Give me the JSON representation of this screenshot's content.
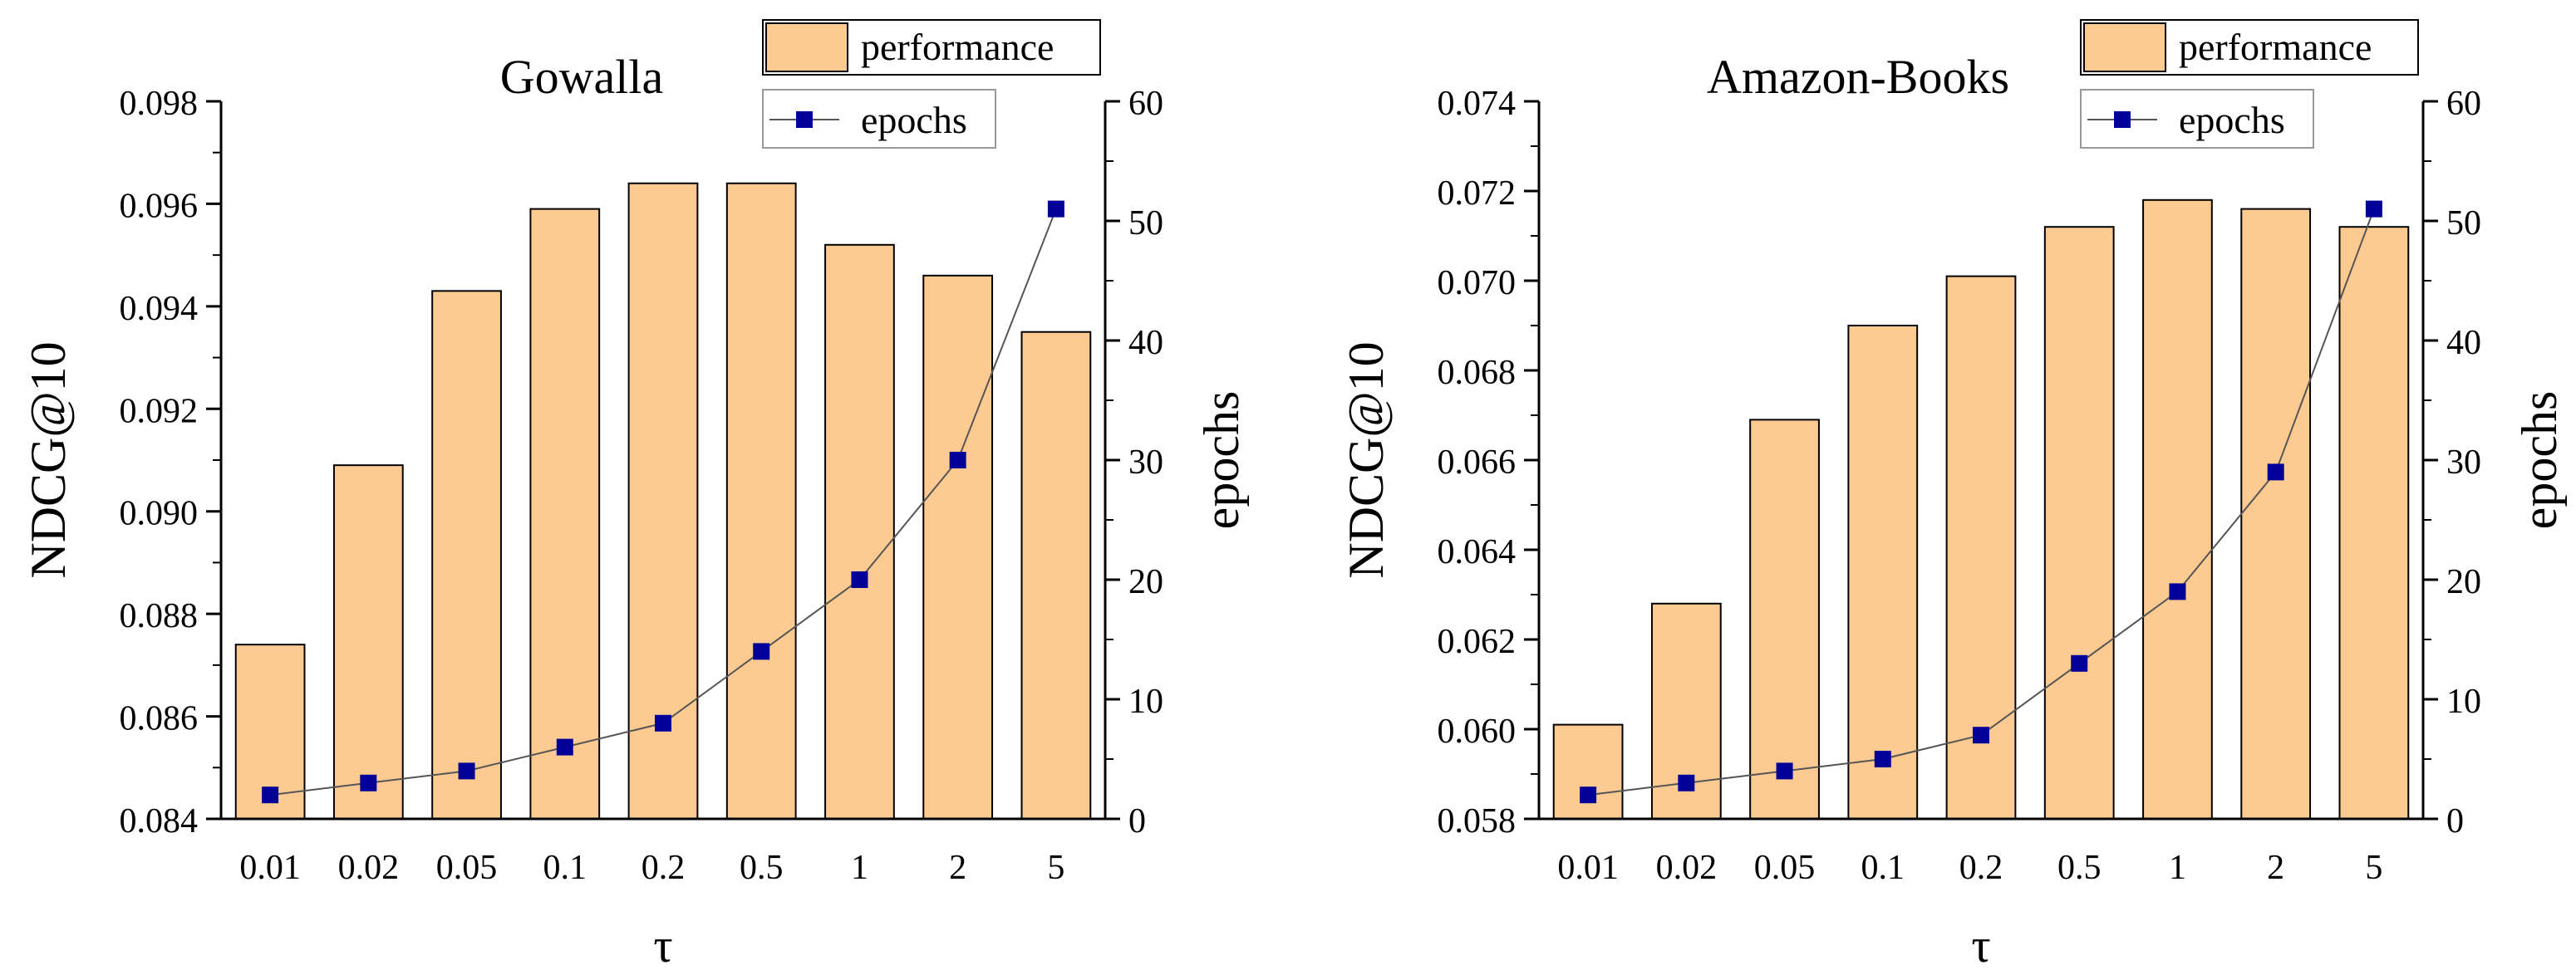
{
  "chart_data": [
    {
      "type": "bar+line",
      "title": "Gowalla",
      "xlabel": "τ",
      "ylabel": "NDCG@10",
      "y2label": "epochs",
      "categories": [
        "0.01",
        "0.02",
        "0.05",
        "0.1",
        "0.2",
        "0.5",
        "1",
        "2",
        "5"
      ],
      "series": [
        {
          "name": "performance",
          "axis": "left",
          "kind": "bar",
          "values": [
            0.0874,
            0.0909,
            0.0943,
            0.0959,
            0.0964,
            0.0964,
            0.0952,
            0.0946,
            0.0935
          ]
        },
        {
          "name": "epochs",
          "axis": "right",
          "kind": "line",
          "values": [
            2,
            3,
            4,
            6,
            8,
            14,
            20,
            30,
            51
          ]
        }
      ],
      "ylim": [
        0.084,
        0.098
      ],
      "yticks": [
        "0.084",
        "0.086",
        "0.088",
        "0.090",
        "0.092",
        "0.094",
        "0.096",
        "0.098"
      ],
      "y2lim": [
        0,
        60
      ],
      "y2ticks": [
        "0",
        "10",
        "20",
        "30",
        "40",
        "50",
        "60"
      ],
      "legend_position": "top-right",
      "colors": {
        "bar": "#fdcb91",
        "line": "#000099",
        "connector": "#555555"
      }
    },
    {
      "type": "bar+line",
      "title": "Amazon-Books",
      "xlabel": "τ",
      "ylabel": "NDCG@10",
      "y2label": "epochs",
      "categories": [
        "0.01",
        "0.02",
        "0.05",
        "0.1",
        "0.2",
        "0.5",
        "1",
        "2",
        "5"
      ],
      "series": [
        {
          "name": "performance",
          "axis": "left",
          "kind": "bar",
          "values": [
            0.0601,
            0.0628,
            0.0669,
            0.069,
            0.0701,
            0.0712,
            0.0718,
            0.0716,
            0.0712
          ]
        },
        {
          "name": "epochs",
          "axis": "right",
          "kind": "line",
          "values": [
            2,
            3,
            4,
            5,
            7,
            13,
            19,
            29,
            51
          ]
        }
      ],
      "ylim": [
        0.058,
        0.074
      ],
      "yticks": [
        "0.058",
        "0.060",
        "0.062",
        "0.064",
        "0.066",
        "0.068",
        "0.070",
        "0.072",
        "0.074"
      ],
      "y2lim": [
        0,
        60
      ],
      "y2ticks": [
        "0",
        "10",
        "20",
        "30",
        "40",
        "50",
        "60"
      ],
      "legend_position": "top-right",
      "colors": {
        "bar": "#fdcb91",
        "line": "#000099",
        "connector": "#555555"
      }
    }
  ]
}
